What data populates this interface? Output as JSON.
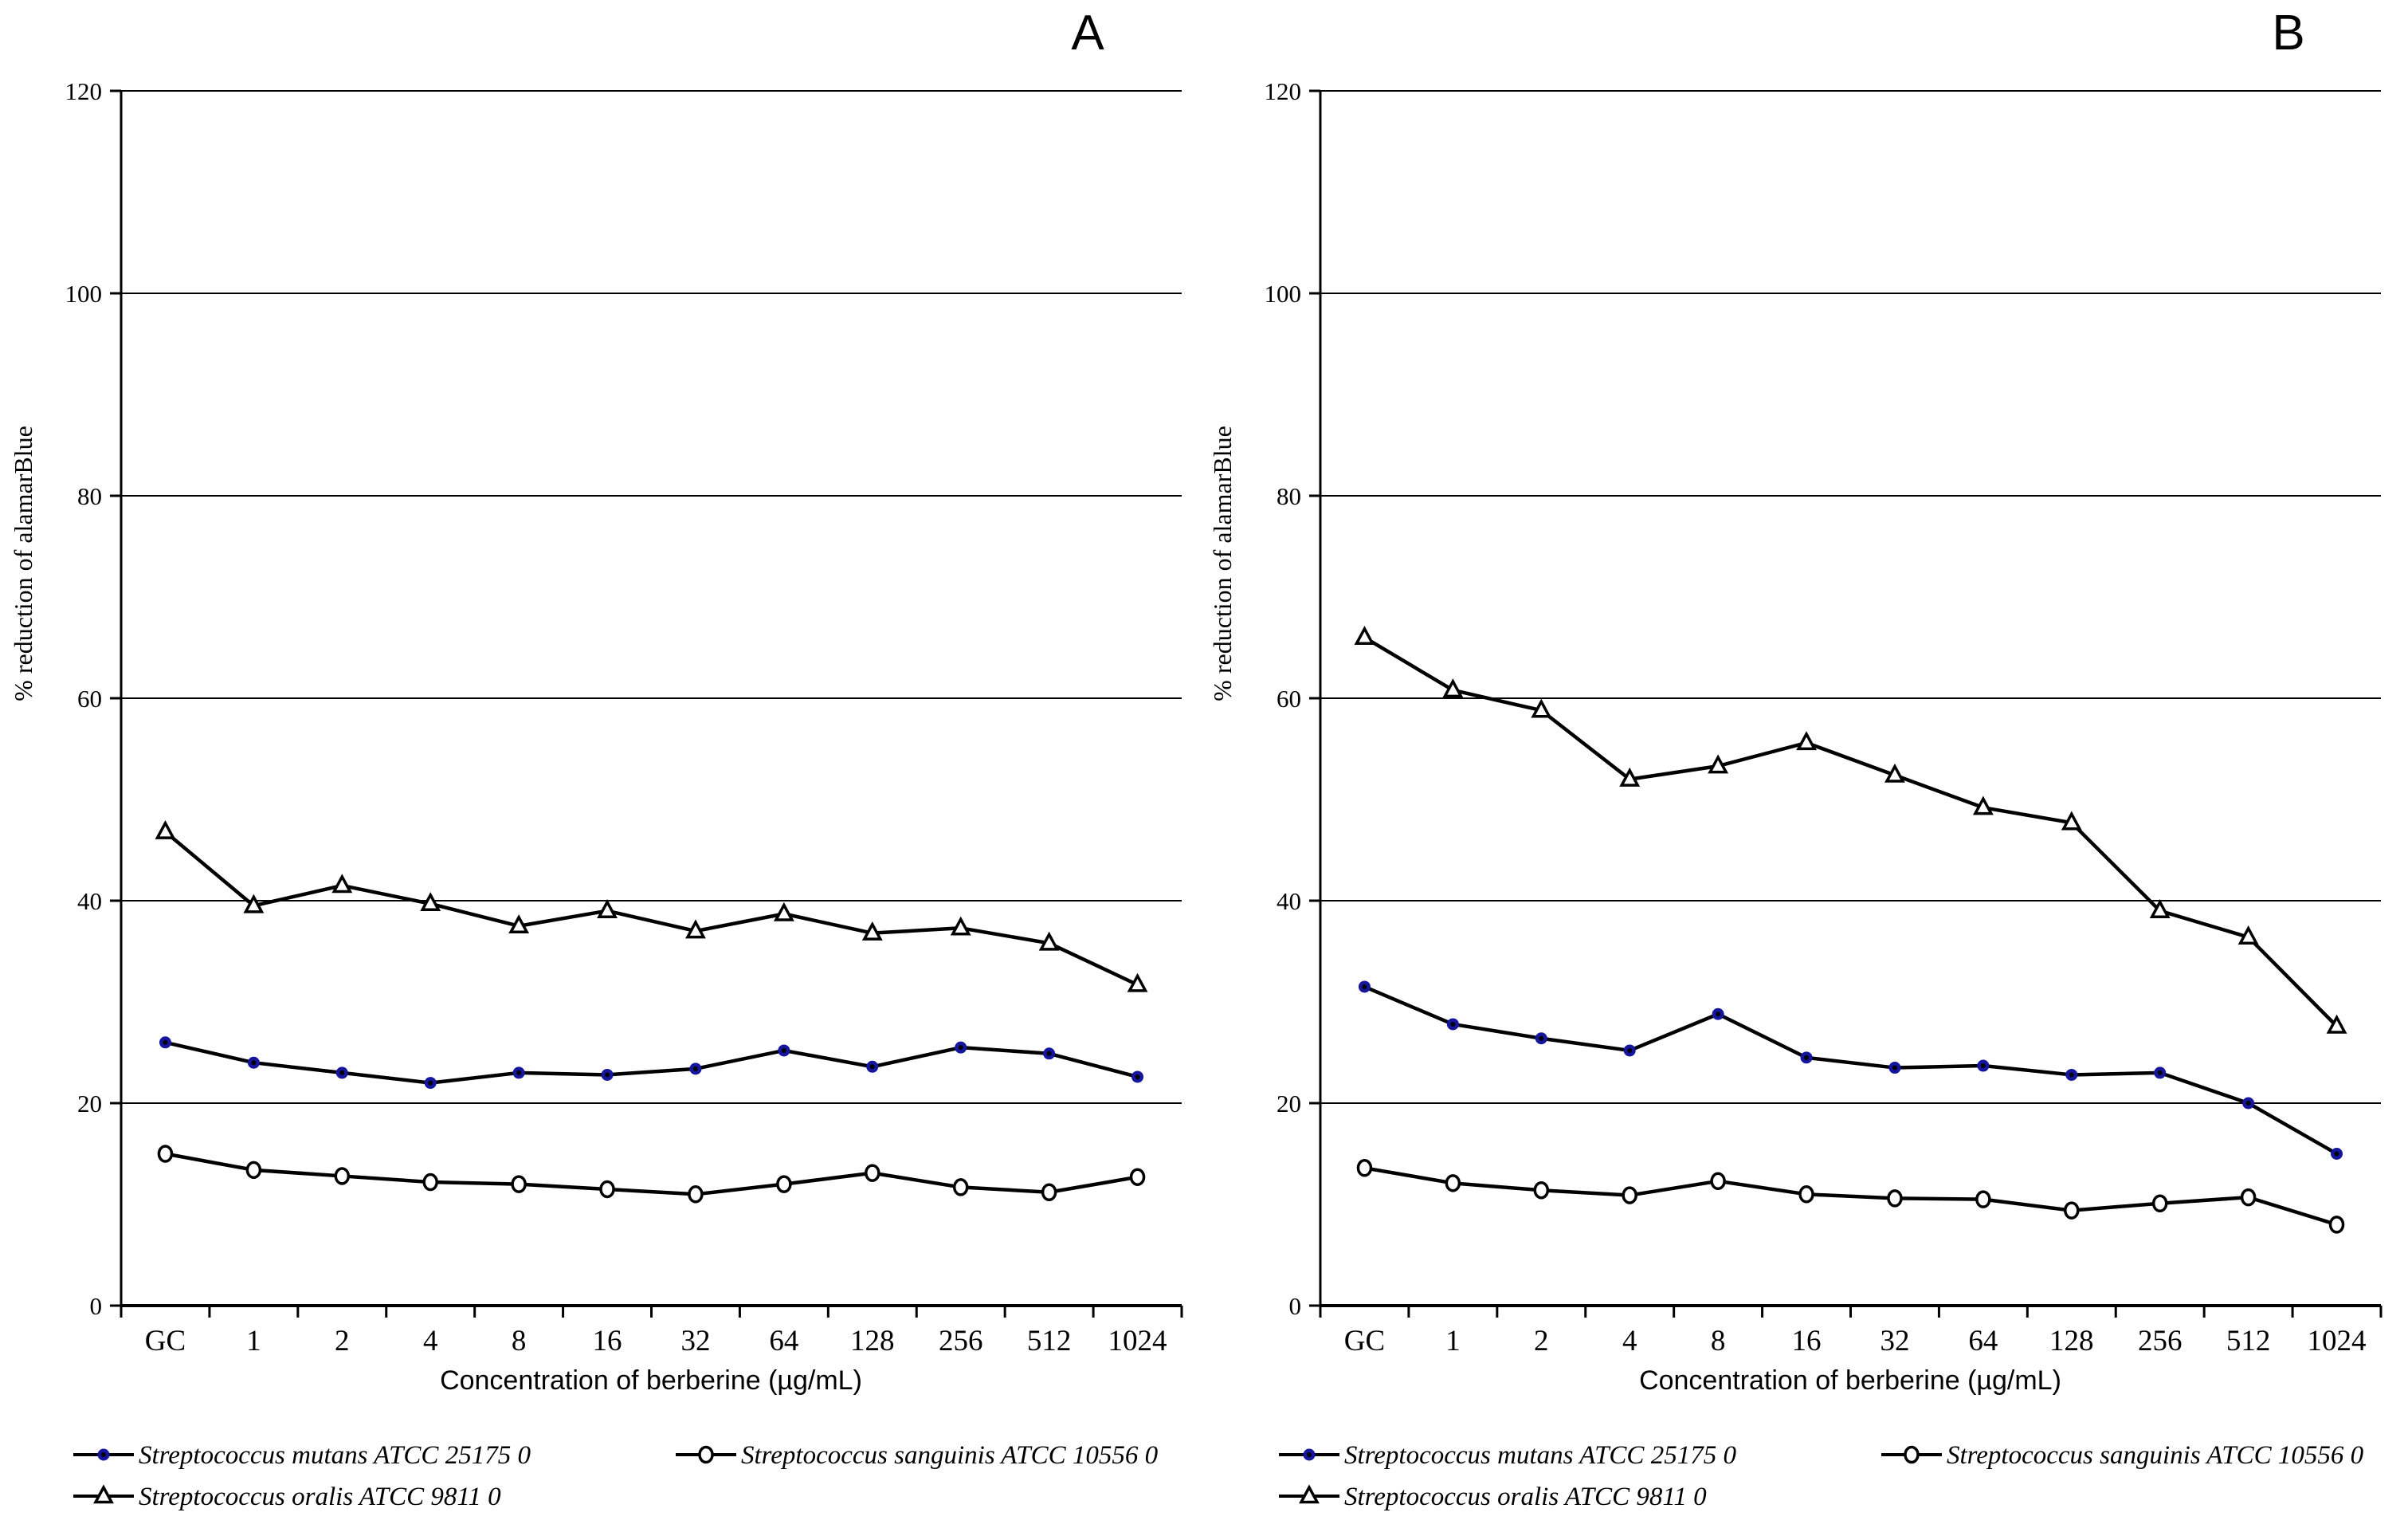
{
  "figure": {
    "background": "#ffffff",
    "text_color": "#000000",
    "navy_marker_color": "#15159d",
    "line_color": "#000000"
  },
  "chart_data": [
    {
      "type": "line",
      "panel_label": "A",
      "title": "",
      "xlabel": "Concentration of berberine (µg/mL)",
      "ylabel": "% reduction of alamarBlue",
      "categories": [
        "GC",
        "1",
        "2",
        "4",
        "8",
        "16",
        "32",
        "64",
        "128",
        "256",
        "512",
        "1024"
      ],
      "ylim": [
        0,
        120
      ],
      "y_ticks": [
        0,
        20,
        40,
        60,
        80,
        100,
        120
      ],
      "grid": "horizontal",
      "legend_position": "below",
      "series": [
        {
          "name": "Streptococcus mutans ATCC 25175 0",
          "marker": "filled-circle",
          "marker_color": "#15159d",
          "line_color": "#000000",
          "values": [
            26,
            24,
            23,
            22,
            23,
            22.8,
            23.4,
            25.2,
            23.6,
            25.5,
            24.9,
            22.6
          ]
        },
        {
          "name": "Streptococcus sanguinis ATCC 10556 0",
          "marker": "open-circle",
          "marker_color": "#000000",
          "line_color": "#000000",
          "values": [
            15,
            13.4,
            12.8,
            12.2,
            12,
            11.5,
            11,
            12,
            13.1,
            11.7,
            11.2,
            12.7
          ]
        },
        {
          "name": "Streptococcus oralis ATCC 9811 0",
          "marker": "open-triangle",
          "marker_color": "#000000",
          "line_color": "#000000",
          "values": [
            46.8,
            39.5,
            41.5,
            39.7,
            37.5,
            39,
            37,
            38.7,
            36.8,
            37.3,
            35.8,
            31.7
          ]
        }
      ]
    },
    {
      "type": "line",
      "panel_label": "B",
      "title": "",
      "xlabel": "Concentration of berberine (µg/mL)",
      "ylabel": "% reduction of alamarBlue",
      "categories": [
        "GC",
        "1",
        "2",
        "4",
        "8",
        "16",
        "32",
        "64",
        "128",
        "256",
        "512",
        "1024"
      ],
      "ylim": [
        0,
        120
      ],
      "y_ticks": [
        0,
        20,
        40,
        60,
        80,
        100,
        120
      ],
      "grid": "horizontal",
      "legend_position": "below",
      "series": [
        {
          "name": "Streptococcus mutans ATCC 25175 0",
          "marker": "filled-circle",
          "marker_color": "#15159d",
          "line_color": "#000000",
          "values": [
            31.5,
            27.8,
            26.4,
            25.2,
            28.8,
            24.5,
            23.5,
            23.7,
            22.8,
            23,
            20,
            15
          ]
        },
        {
          "name": "Streptococcus sanguinis ATCC 10556 0",
          "marker": "open-circle",
          "marker_color": "#000000",
          "line_color": "#000000",
          "values": [
            13.6,
            12.1,
            11.4,
            10.9,
            12.3,
            11,
            10.6,
            10.5,
            9.4,
            10.1,
            10.7,
            8
          ]
        },
        {
          "name": "Streptococcus oralis ATCC 9811 0",
          "marker": "open-triangle",
          "marker_color": "#000000",
          "line_color": "#000000",
          "values": [
            66,
            60.8,
            58.8,
            52,
            53.3,
            55.6,
            52.4,
            49.2,
            47.7,
            39,
            36.4,
            27.6
          ]
        }
      ]
    }
  ]
}
